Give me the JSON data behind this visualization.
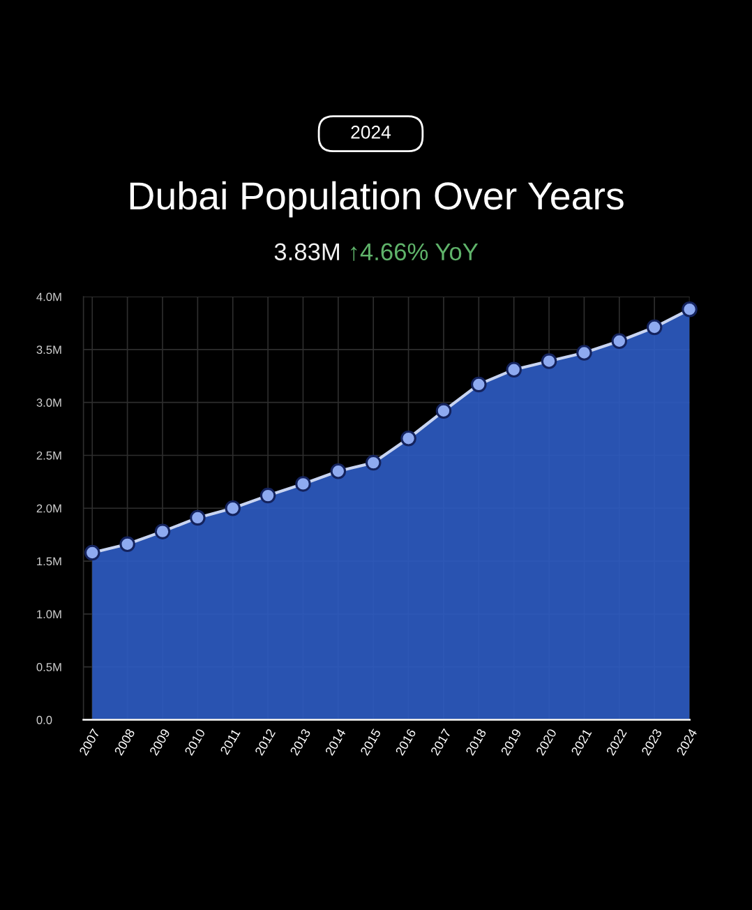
{
  "chart_data": {
    "type": "area",
    "title": "Dubai Population Over Years",
    "subtitle": "3.83M ↑4.66% YoY",
    "annotations": [
      "2024"
    ],
    "categories": [
      "2007",
      "2008",
      "2009",
      "2010",
      "2011",
      "2012",
      "2013",
      "2014",
      "2015",
      "2016",
      "2017",
      "2018",
      "2019",
      "2020",
      "2021",
      "2022",
      "2023",
      "2024"
    ],
    "series": [
      {
        "color": "#2d5cc4",
        "values": [
          1.58,
          1.66,
          1.78,
          1.91,
          2.0,
          2.12,
          2.23,
          2.35,
          2.43,
          2.66,
          2.92,
          3.17,
          3.31,
          3.39,
          3.47,
          3.58,
          3.71,
          3.88
        ]
      }
    ],
    "ylim": [
      0,
      4.0
    ],
    "yticks": [
      {
        "value": 0,
        "label": "0.0"
      },
      {
        "value": 0.5,
        "label": "0.5M"
      },
      {
        "value": 1.0,
        "label": "1.0M"
      },
      {
        "value": 1.5,
        "label": "1.5M"
      },
      {
        "value": 2.0,
        "label": "2.0M"
      },
      {
        "value": 2.5,
        "label": "2.5M"
      },
      {
        "value": 3.0,
        "label": "3.0M"
      },
      {
        "value": 3.5,
        "label": "3.5M"
      },
      {
        "value": 4.0,
        "label": "4.0M"
      }
    ],
    "grid": true,
    "marker": "circle",
    "line_style": "solid"
  }
}
